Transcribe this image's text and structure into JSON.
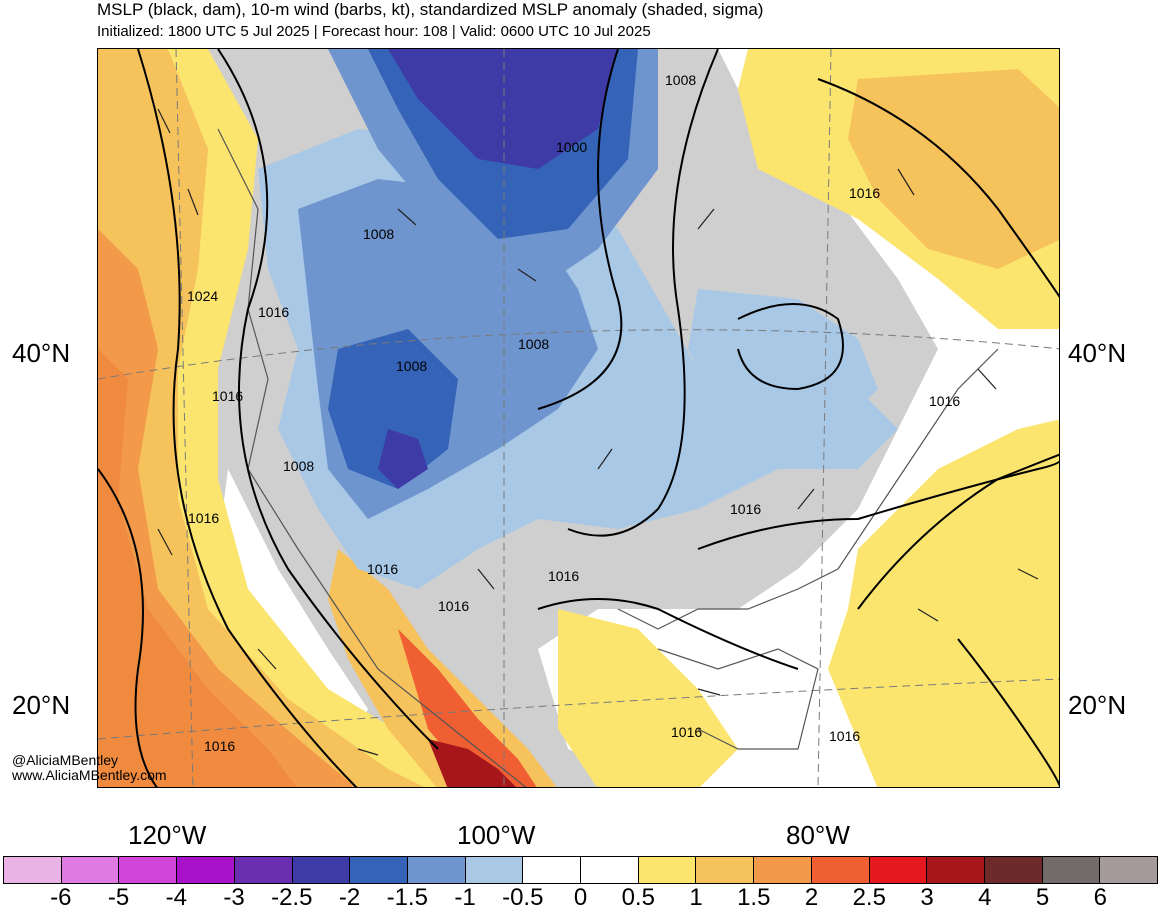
{
  "header": {
    "title": "MSLP (black, dam), 10-m wind (barbs, kt), standardized MSLP anomaly (shaded, sigma)",
    "subtitle": "Initialized: 1800 UTC 5 Jul 2025 | Forecast hour: 108 | Valid: 0600 UTC 10 Jul 2025"
  },
  "map": {
    "lat_labels": [
      "40°N",
      "20°N"
    ],
    "lon_labels": [
      "120°W",
      "100°W",
      "80°W"
    ],
    "contour_labels": [
      "1008",
      "1000",
      "1016",
      "1008",
      "1024",
      "1016",
      "1008",
      "1008",
      "1016",
      "1008",
      "1016",
      "1016",
      "1016",
      "1016",
      "1016",
      "1016",
      "1016",
      "1016",
      "1016"
    ],
    "credit": [
      "@AliciaMBentley",
      "www.AliciaMBentley.com"
    ]
  },
  "colorbar": {
    "colors": [
      "#e9b3e6",
      "#e07ae3",
      "#d146d8",
      "#a813c9",
      "#6a2fb0",
      "#3e3aa6",
      "#3563b8",
      "#6f95cf",
      "#a9c8e6",
      "#ffffff",
      "#ffffff",
      "#fbe56f",
      "#f6c25c",
      "#f2994a",
      "#ef5f32",
      "#e3191d",
      "#a7161b",
      "#6e2a2a",
      "#736a6a",
      "#a69b9b"
    ],
    "ticks": [
      "-6",
      "-5",
      "-4",
      "-3",
      "-2.5",
      "-2",
      "-1.5",
      "-1",
      "-0.5",
      "0",
      "0.5",
      "1",
      "1.5",
      "2",
      "2.5",
      "3",
      "4",
      "5",
      "6"
    ]
  }
}
